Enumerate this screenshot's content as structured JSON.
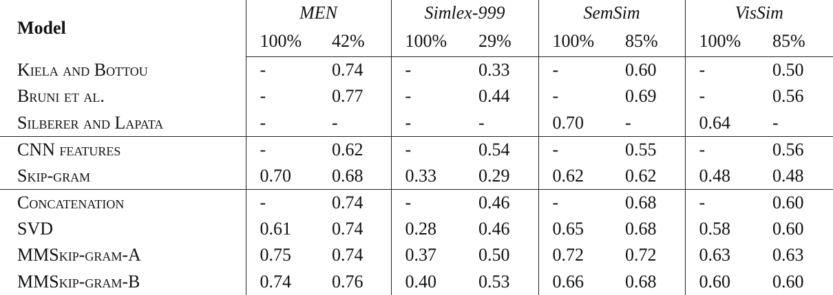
{
  "table": {
    "model_header": "Model",
    "groups": [
      {
        "name": "MEN",
        "subheaders": [
          "100%",
          "42%"
        ]
      },
      {
        "name": "Simlex-999",
        "subheaders": [
          "100%",
          "29%"
        ]
      },
      {
        "name": "SemSim",
        "subheaders": [
          "100%",
          "85%"
        ]
      },
      {
        "name": "VisSim",
        "subheaders": [
          "100%",
          "85%"
        ]
      }
    ],
    "rows": [
      {
        "model": "Kiela and Bottou",
        "cells": [
          "-",
          "0.74",
          "-",
          "0.33",
          "-",
          "0.60",
          "-",
          "0.50"
        ]
      },
      {
        "model": "Bruni et al.",
        "cells": [
          "-",
          "0.77",
          "-",
          "0.44",
          "-",
          "0.69",
          "-",
          "0.56"
        ]
      },
      {
        "model": "Silberer and Lapata",
        "cells": [
          "-",
          "-",
          "-",
          "-",
          "0.70",
          "-",
          "0.64",
          "-"
        ]
      },
      {
        "model": "CNN features",
        "cells": [
          "-",
          "0.62",
          "-",
          "0.54",
          "-",
          "0.55",
          "-",
          "0.56"
        ]
      },
      {
        "model": "Skip-gram",
        "cells": [
          "0.70",
          "0.68",
          "0.33",
          "0.29",
          "0.62",
          "0.62",
          "0.48",
          "0.48"
        ]
      },
      {
        "model": "Concatenation",
        "cells": [
          "-",
          "0.74",
          "-",
          "0.46",
          "-",
          "0.68",
          "-",
          "0.60"
        ]
      },
      {
        "model": "SVD",
        "cells": [
          "0.61",
          "0.74",
          "0.28",
          "0.46",
          "0.65",
          "0.68",
          "0.58",
          "0.60"
        ]
      },
      {
        "model": "MMSkip-gram-A",
        "cells": [
          "0.75",
          "0.74",
          "0.37",
          "0.50",
          "0.72",
          "0.72",
          "0.63",
          "0.63"
        ]
      },
      {
        "model": "MMSkip-gram-B",
        "cells": [
          "0.74",
          "0.76",
          "0.40",
          "0.53",
          "0.66",
          "0.68",
          "0.60",
          "0.60"
        ]
      }
    ]
  }
}
